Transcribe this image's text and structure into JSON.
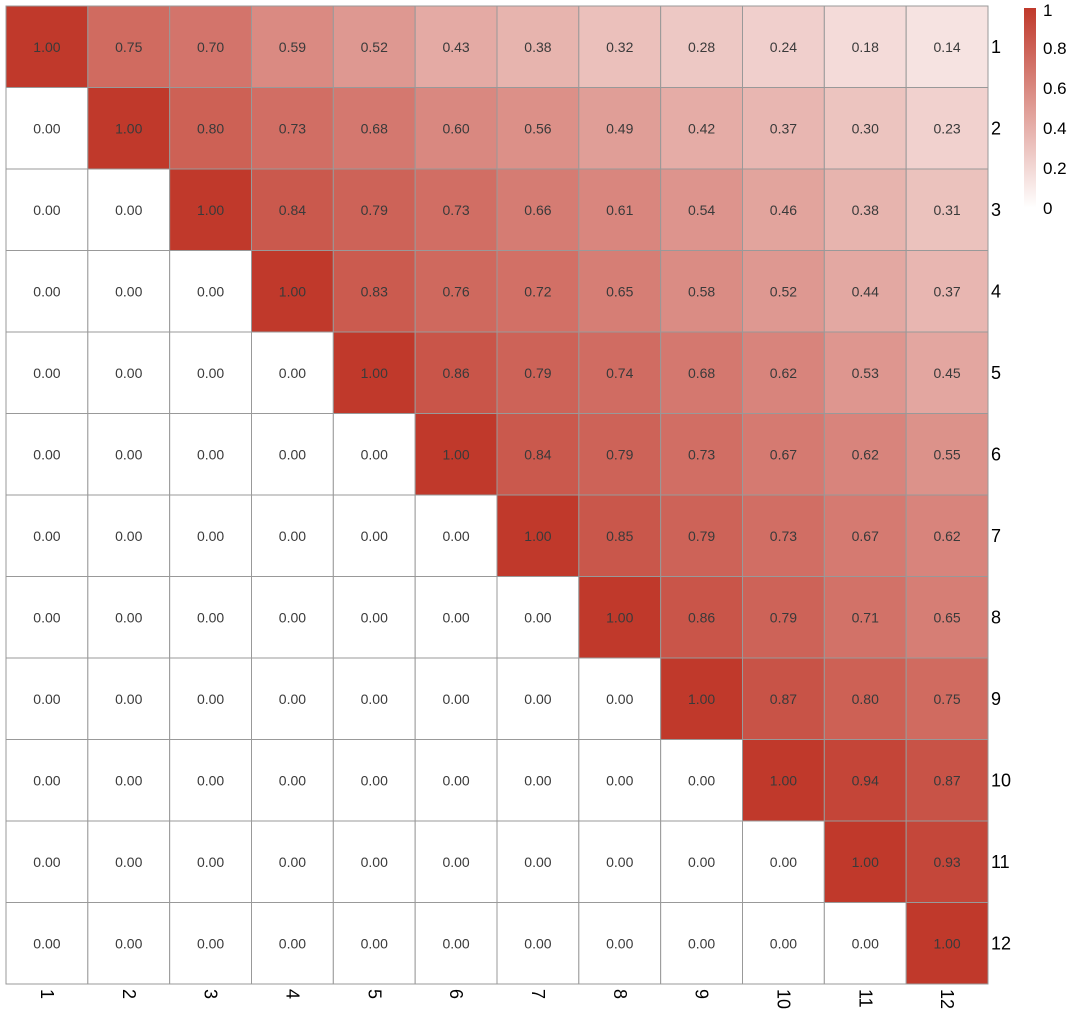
{
  "chart_data": {
    "type": "heatmap",
    "rows": [
      "1",
      "2",
      "3",
      "4",
      "5",
      "6",
      "7",
      "8",
      "9",
      "10",
      "11",
      "12"
    ],
    "cols": [
      "1",
      "2",
      "3",
      "4",
      "5",
      "6",
      "7",
      "8",
      "9",
      "10",
      "11",
      "12"
    ],
    "values": [
      [
        1.0,
        0.75,
        0.7,
        0.59,
        0.52,
        0.43,
        0.38,
        0.32,
        0.28,
        0.24,
        0.18,
        0.14
      ],
      [
        0.0,
        1.0,
        0.8,
        0.73,
        0.68,
        0.6,
        0.56,
        0.49,
        0.42,
        0.37,
        0.3,
        0.23
      ],
      [
        0.0,
        0.0,
        1.0,
        0.84,
        0.79,
        0.73,
        0.66,
        0.61,
        0.54,
        0.46,
        0.38,
        0.31
      ],
      [
        0.0,
        0.0,
        0.0,
        1.0,
        0.83,
        0.76,
        0.72,
        0.65,
        0.58,
        0.52,
        0.44,
        0.37
      ],
      [
        0.0,
        0.0,
        0.0,
        0.0,
        1.0,
        0.86,
        0.79,
        0.74,
        0.68,
        0.62,
        0.53,
        0.45
      ],
      [
        0.0,
        0.0,
        0.0,
        0.0,
        0.0,
        1.0,
        0.84,
        0.79,
        0.73,
        0.67,
        0.62,
        0.55
      ],
      [
        0.0,
        0.0,
        0.0,
        0.0,
        0.0,
        0.0,
        1.0,
        0.85,
        0.79,
        0.73,
        0.67,
        0.62
      ],
      [
        0.0,
        0.0,
        0.0,
        0.0,
        0.0,
        0.0,
        0.0,
        1.0,
        0.86,
        0.79,
        0.71,
        0.65
      ],
      [
        0.0,
        0.0,
        0.0,
        0.0,
        0.0,
        0.0,
        0.0,
        0.0,
        1.0,
        0.87,
        0.8,
        0.75
      ],
      [
        0.0,
        0.0,
        0.0,
        0.0,
        0.0,
        0.0,
        0.0,
        0.0,
        0.0,
        1.0,
        0.94,
        0.87
      ],
      [
        0.0,
        0.0,
        0.0,
        0.0,
        0.0,
        0.0,
        0.0,
        0.0,
        0.0,
        0.0,
        1.0,
        0.93
      ],
      [
        0.0,
        0.0,
        0.0,
        0.0,
        0.0,
        0.0,
        0.0,
        0.0,
        0.0,
        0.0,
        0.0,
        1.0
      ]
    ],
    "color_range": [
      0,
      1
    ],
    "colors": {
      "low": "#ffffff",
      "high": "#c0392b",
      "grid": "#999999"
    },
    "legend": {
      "position": "top-right",
      "ticks": [
        "0",
        "0.2",
        "0.4",
        "0.6",
        "0.8",
        "1"
      ]
    },
    "row_labels_position": "right",
    "col_labels_position": "bottom",
    "col_labels_rotation": "90-degree clockwise"
  }
}
